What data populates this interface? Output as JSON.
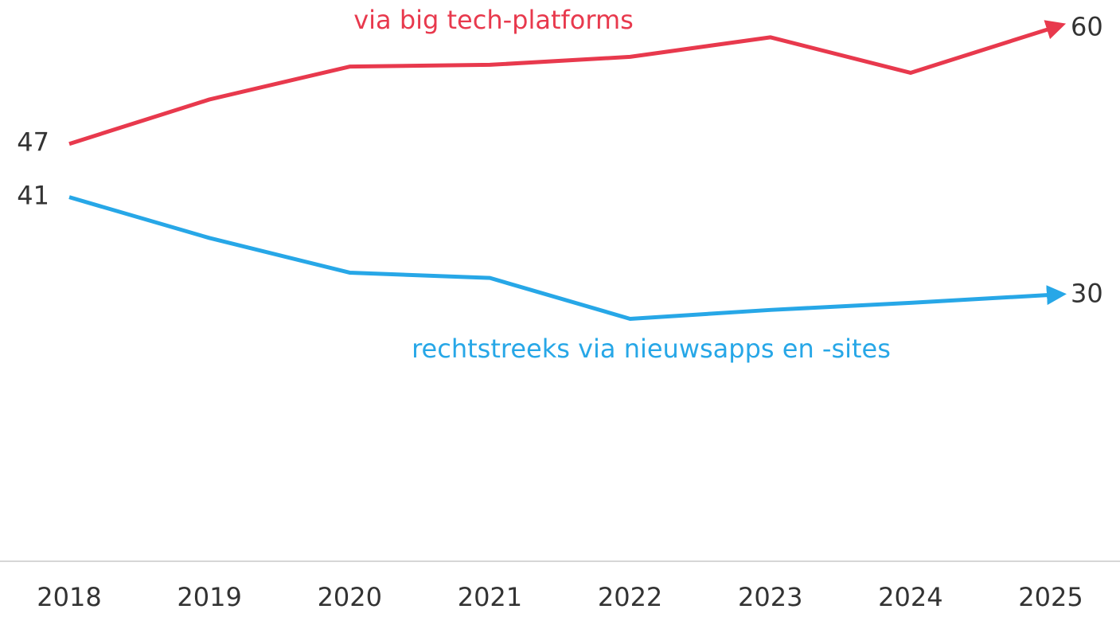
{
  "chart_data": {
    "type": "line",
    "x": [
      "2018",
      "2019",
      "2020",
      "2021",
      "2022",
      "2023",
      "2024",
      "2025"
    ],
    "series": [
      {
        "name": "via big tech-platforms",
        "color": "#e8394d",
        "values": [
          47,
          52.0,
          55.7,
          55.9,
          56.8,
          59.0,
          55.0,
          60
        ]
      },
      {
        "name": "rechtstreeks via nieuwsapps en -sites",
        "color": "#27a7e7",
        "values": [
          41,
          36.4,
          32.5,
          31.9,
          27.3,
          28.3,
          29.1,
          30
        ]
      }
    ],
    "ylim": [
      0,
      63.2
    ]
  }
}
